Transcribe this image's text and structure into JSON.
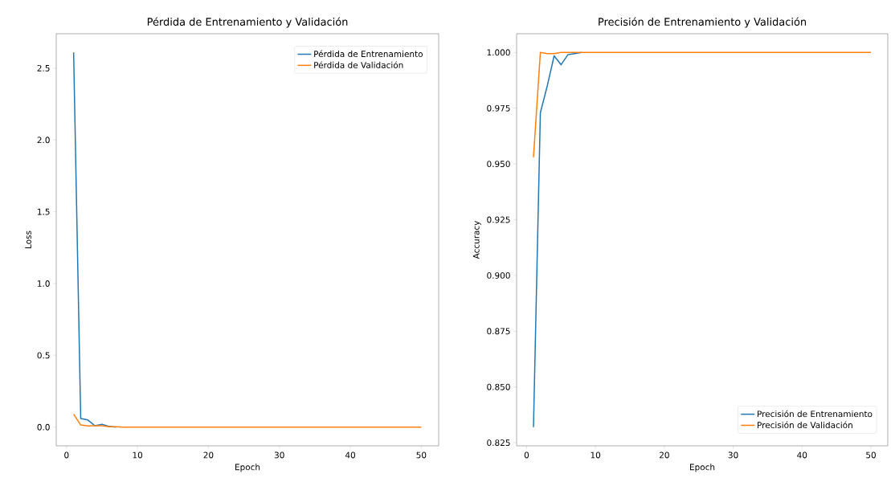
{
  "chart_data": [
    {
      "type": "line",
      "title": "Pérdida de Entrenamiento y Validación",
      "xlabel": "Epoch",
      "ylabel": "Loss",
      "xlim": [
        -1.45,
        52.45
      ],
      "ylim": [
        -0.13,
        2.74
      ],
      "xticks": [
        0,
        10,
        20,
        30,
        40,
        50
      ],
      "yticks": [
        {
          "value": 0,
          "label": "0.0"
        },
        {
          "value": 0.5,
          "label": "0.5"
        },
        {
          "value": 1,
          "label": "1.0"
        },
        {
          "value": 1.5,
          "label": "1.5"
        },
        {
          "value": 2,
          "label": "2.0"
        },
        {
          "value": 2.5,
          "label": "2.5"
        }
      ],
      "legend": "top right",
      "marker": "none",
      "line_style": "solid",
      "x": [
        1,
        2,
        3,
        4,
        5,
        6,
        7,
        8,
        9,
        10,
        11,
        12,
        13,
        14,
        15,
        16,
        17,
        18,
        19,
        20,
        21,
        22,
        23,
        24,
        25,
        26,
        27,
        28,
        29,
        30,
        31,
        32,
        33,
        34,
        35,
        36,
        37,
        38,
        39,
        40,
        41,
        42,
        43,
        44,
        45,
        46,
        47,
        48,
        49,
        50
      ],
      "series": [
        {
          "name": "Pérdida de Entrenamiento",
          "color": "#1f77b4",
          "values": [
            2.61,
            0.06,
            0.05,
            0.01,
            0.02,
            0.005,
            0,
            null,
            null,
            null,
            null,
            null,
            null,
            null,
            null,
            null,
            null,
            null,
            null,
            null,
            null,
            null,
            null,
            null,
            null,
            null,
            null,
            null,
            null,
            null,
            null,
            null,
            null,
            null,
            null,
            null,
            null,
            null,
            null,
            null,
            null,
            null,
            null,
            null,
            null,
            null,
            null,
            null,
            null,
            null
          ]
        },
        {
          "name": "Pérdida de Validación",
          "color": "#ff7f0e",
          "values": [
            0.09,
            0.015,
            0.008,
            0.01,
            0.01,
            0.003,
            0.003,
            0,
            0,
            0,
            0,
            0,
            0,
            0,
            0,
            0,
            0,
            0,
            0,
            0,
            0,
            0,
            0,
            0,
            0,
            0,
            0,
            0,
            0,
            0,
            0,
            0,
            0,
            0,
            0,
            0,
            0,
            0,
            0,
            0,
            0,
            0,
            0,
            0,
            0,
            0,
            0,
            0,
            0,
            0
          ]
        }
      ]
    },
    {
      "type": "line",
      "title": "Precisión de Entrenamiento y Validación",
      "xlabel": "Epoch",
      "ylabel": "Accuracy",
      "xlim": [
        -1.45,
        52.45
      ],
      "ylim": [
        0.8236,
        1.0084
      ],
      "xticks": [
        0,
        10,
        20,
        30,
        40,
        50
      ],
      "yticks": [
        {
          "value": 0.825,
          "label": "0.825"
        },
        {
          "value": 0.85,
          "label": "0.850"
        },
        {
          "value": 0.875,
          "label": "0.875"
        },
        {
          "value": 0.9,
          "label": "0.900"
        },
        {
          "value": 0.925,
          "label": "0.925"
        },
        {
          "value": 0.95,
          "label": "0.950"
        },
        {
          "value": 0.975,
          "label": "0.975"
        },
        {
          "value": 1,
          "label": "1.000"
        }
      ],
      "legend": "bottom right",
      "marker": "none",
      "line_style": "solid",
      "x": [
        1,
        2,
        3,
        4,
        5,
        6,
        7,
        8,
        9,
        10,
        11,
        12,
        13,
        14,
        15,
        16,
        17,
        18,
        19,
        20,
        21,
        22,
        23,
        24,
        25,
        26,
        27,
        28,
        29,
        30,
        31,
        32,
        33,
        34,
        35,
        36,
        37,
        38,
        39,
        40,
        41,
        42,
        43,
        44,
        45,
        46,
        47,
        48,
        49,
        50
      ],
      "series": [
        {
          "name": "Precisión de Entrenamiento",
          "color": "#1f77b4",
          "values": [
            0.832,
            0.973,
            0.985,
            0.9985,
            0.9945,
            0.999,
            0.9995,
            1,
            null,
            null,
            null,
            null,
            null,
            null,
            null,
            null,
            null,
            null,
            null,
            null,
            null,
            null,
            null,
            null,
            null,
            null,
            null,
            null,
            null,
            null,
            null,
            null,
            null,
            null,
            null,
            null,
            null,
            null,
            null,
            null,
            null,
            null,
            null,
            null,
            null,
            null,
            null,
            null,
            null,
            null
          ]
        },
        {
          "name": "Precisión de Validación",
          "color": "#ff7f0e",
          "values": [
            0.953,
            1,
            0.9995,
            0.9995,
            1,
            1,
            1,
            1,
            1,
            1,
            1,
            1,
            1,
            1,
            1,
            1,
            1,
            1,
            1,
            1,
            1,
            1,
            1,
            1,
            1,
            1,
            1,
            1,
            1,
            1,
            1,
            1,
            1,
            1,
            1,
            1,
            1,
            1,
            1,
            1,
            1,
            1,
            1,
            1,
            1,
            1,
            1,
            1,
            1,
            1
          ]
        }
      ]
    }
  ]
}
